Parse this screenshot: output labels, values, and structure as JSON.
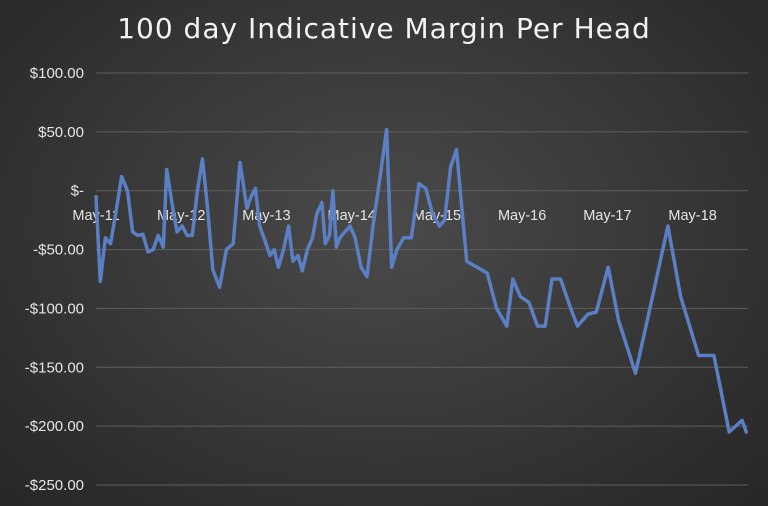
{
  "chart_data": {
    "type": "line",
    "title": "100 day Indicative Margin Per Head",
    "xlabel": "",
    "ylabel": "",
    "ylim": [
      -250,
      100
    ],
    "y_tick_values": [
      100,
      50,
      0,
      -50,
      -100,
      -150,
      -200,
      -250
    ],
    "y_tick_labels": [
      "$100.00",
      "$50.00",
      "$-",
      "-$50.00",
      "-$100.00",
      "-$150.00",
      "-$200.00",
      "-$250.00"
    ],
    "x_tick_labels": [
      "May-11",
      "May-12",
      "May-13",
      "May-14",
      "May-15",
      "May-16",
      "May-17",
      "May-18"
    ],
    "x_range": [
      2011.35,
      2019.0
    ],
    "grid": true,
    "legend": "none",
    "colors": {
      "line": "#5b7fc4",
      "grid": "#5e5e5e",
      "text": "#e6e6e6"
    },
    "series": [
      {
        "x": [
          2011.35,
          2011.4,
          2011.46,
          2011.52,
          2011.58,
          2011.65,
          2011.72,
          2011.78,
          2011.84,
          2011.9,
          2011.96,
          2012.02,
          2012.08,
          2012.14,
          2012.18,
          2012.24,
          2012.3,
          2012.36,
          2012.42,
          2012.48,
          2012.54,
          2012.6,
          2012.66,
          2012.72,
          2012.8,
          2012.88,
          2012.96,
          2013.04,
          2013.12,
          2013.17,
          2013.22,
          2013.27,
          2013.33,
          2013.39,
          2013.44,
          2013.49,
          2013.55,
          2013.61,
          2013.66,
          2013.72,
          2013.77,
          2013.83,
          2013.89,
          2013.94,
          2014.0,
          2014.04,
          2014.09,
          2014.13,
          2014.17,
          2014.21,
          2014.27,
          2014.33,
          2014.39,
          2014.46,
          2014.53,
          2014.6,
          2014.68,
          2014.76,
          2014.82,
          2014.88,
          2014.96,
          2015.05,
          2015.14,
          2015.22,
          2015.3,
          2015.38,
          2015.44,
          2015.51,
          2015.58,
          2015.7,
          2015.82,
          2015.94,
          2016.05,
          2016.17,
          2016.24,
          2016.33,
          2016.43,
          2016.53,
          2016.62,
          2016.7,
          2016.8,
          2016.92,
          2017.0,
          2017.12,
          2017.22,
          2017.36,
          2017.48,
          2017.68,
          2017.88,
          2018.06,
          2018.21,
          2018.42,
          2018.6,
          2018.78,
          2018.93,
          2018.98
        ],
        "values": [
          -5,
          -77,
          -40,
          -45,
          -20,
          12,
          0,
          -35,
          -38,
          -37,
          -52,
          -50,
          -38,
          -48,
          18,
          -10,
          -35,
          -30,
          -38,
          -38,
          0,
          27,
          -15,
          -67,
          -82,
          -50,
          -45,
          24,
          -15,
          -5,
          2,
          -30,
          -42,
          -55,
          -50,
          -65,
          -50,
          -30,
          -60,
          -55,
          -68,
          -50,
          -40,
          -20,
          -10,
          -45,
          -38,
          0,
          -48,
          -40,
          -35,
          -30,
          -40,
          -65,
          -73,
          -30,
          10,
          52,
          -65,
          -50,
          -40,
          -40,
          6,
          2,
          -20,
          -30,
          -25,
          20,
          35,
          -60,
          -65,
          -70,
          -100,
          -115,
          -75,
          -90,
          -95,
          -115,
          -115,
          -75,
          -75,
          -100,
          -115,
          -105,
          -103,
          -65,
          -110,
          -155,
          -90,
          -30,
          -90,
          -140,
          -140,
          -205,
          -195,
          -205
        ]
      }
    ]
  }
}
